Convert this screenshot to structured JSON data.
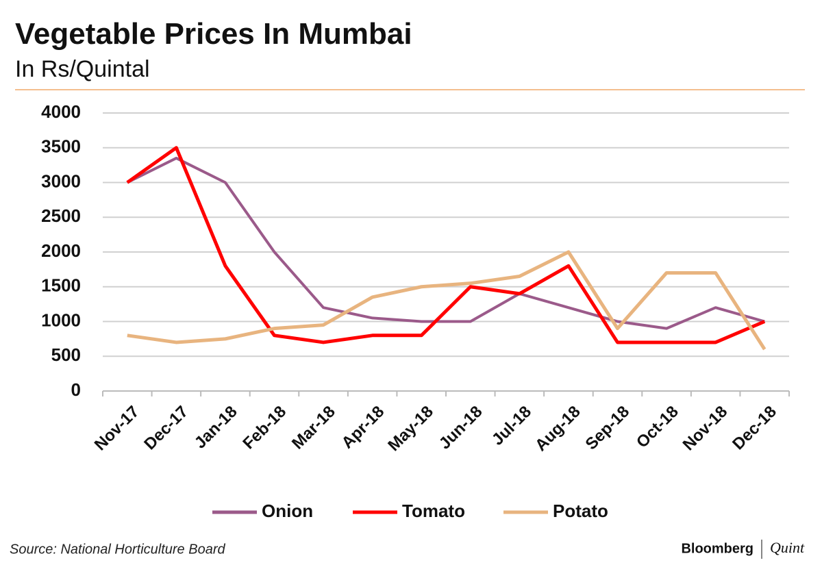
{
  "chart_data": {
    "type": "line",
    "title": "Vegetable Prices In Mumbai",
    "subtitle": "In Rs/Quintal",
    "categories": [
      "Nov-17",
      "Dec-17",
      "Jan-18",
      "Feb-18",
      "Mar-18",
      "Apr-18",
      "May-18",
      "Jun-18",
      "Jul-18",
      "Aug-18",
      "Sep-18",
      "Oct-18",
      "Nov-18",
      "Dec-18"
    ],
    "series": [
      {
        "name": "Onion",
        "color": "#9b5a8a",
        "values": [
          3000,
          3350,
          3000,
          2000,
          1200,
          1050,
          1000,
          1000,
          1400,
          1200,
          1000,
          900,
          1200,
          1000
        ]
      },
      {
        "name": "Tomato",
        "color": "#ff0000",
        "values": [
          3000,
          3500,
          1800,
          800,
          700,
          800,
          800,
          1500,
          1400,
          1800,
          700,
          700,
          700,
          1000
        ]
      },
      {
        "name": "Potato",
        "color": "#e8b47f",
        "values": [
          800,
          700,
          750,
          900,
          950,
          1350,
          1500,
          1550,
          1650,
          2000,
          900,
          1700,
          1700,
          600
        ]
      }
    ],
    "ylim": [
      0,
      4000
    ],
    "yticks": [
      0,
      500,
      1000,
      1500,
      2000,
      2500,
      3000,
      3500,
      4000
    ],
    "grid": true,
    "legend": "bottom",
    "source": "Source: National Horticulture Board",
    "brand": [
      "Bloomberg",
      "Quint"
    ]
  }
}
